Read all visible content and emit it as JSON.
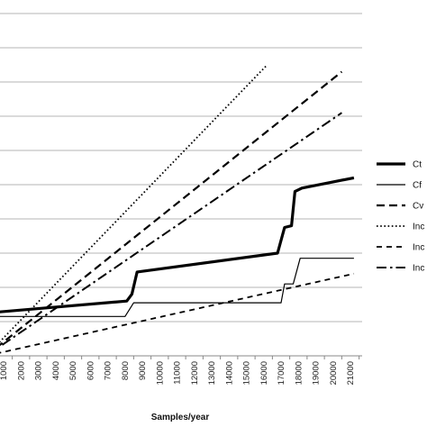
{
  "chart_data": {
    "type": "line",
    "title": "",
    "xlabel": "Samples/year",
    "ylabel": "",
    "grid": true,
    "legend": "right",
    "x_ticks": [
      "1000",
      "2000",
      "3000",
      "4000",
      "5000",
      "6000",
      "7000",
      "8000",
      "9000",
      "10000",
      "11000",
      "12000",
      "13000",
      "14000",
      "15000",
      "16000",
      "17000",
      "18000",
      "19000",
      "20000",
      "21000"
    ],
    "x_range": [
      1000,
      21000
    ],
    "y_range": [
      0,
      10
    ],
    "y_gridlines": [
      0,
      1,
      2,
      3,
      4,
      5,
      6,
      7,
      8,
      9,
      10
    ],
    "series": [
      {
        "name": "Ct",
        "style": "thick",
        "points": [
          [
            0,
            1.25
          ],
          [
            8100,
            1.6
          ],
          [
            8400,
            1.8
          ],
          [
            8700,
            2.45
          ],
          [
            16800,
            3.0
          ],
          [
            17200,
            3.75
          ],
          [
            17600,
            3.8
          ],
          [
            17800,
            4.8
          ],
          [
            18200,
            4.9
          ],
          [
            21200,
            5.2
          ]
        ]
      },
      {
        "name": "Cf",
        "style": "thin",
        "points": [
          [
            0,
            1.15
          ],
          [
            8000,
            1.15
          ],
          [
            8500,
            1.55
          ],
          [
            17000,
            1.55
          ],
          [
            17200,
            2.1
          ],
          [
            17700,
            2.1
          ],
          [
            18100,
            2.85
          ],
          [
            21200,
            2.85
          ]
        ]
      },
      {
        "name": "Cv",
        "style": "dash",
        "points": [
          [
            0,
            0
          ],
          [
            20500,
            8.3
          ]
        ]
      },
      {
        "name": "Inc",
        "style": "dot",
        "points": [
          [
            0,
            0
          ],
          [
            16200,
            8.5
          ]
        ]
      },
      {
        "name": "Inc",
        "style": "dash-small",
        "points": [
          [
            0,
            0
          ],
          [
            21200,
            2.4
          ]
        ]
      },
      {
        "name": "Inc",
        "style": "dash-dot",
        "points": [
          [
            0,
            0
          ],
          [
            20500,
            7.1
          ]
        ]
      }
    ]
  }
}
